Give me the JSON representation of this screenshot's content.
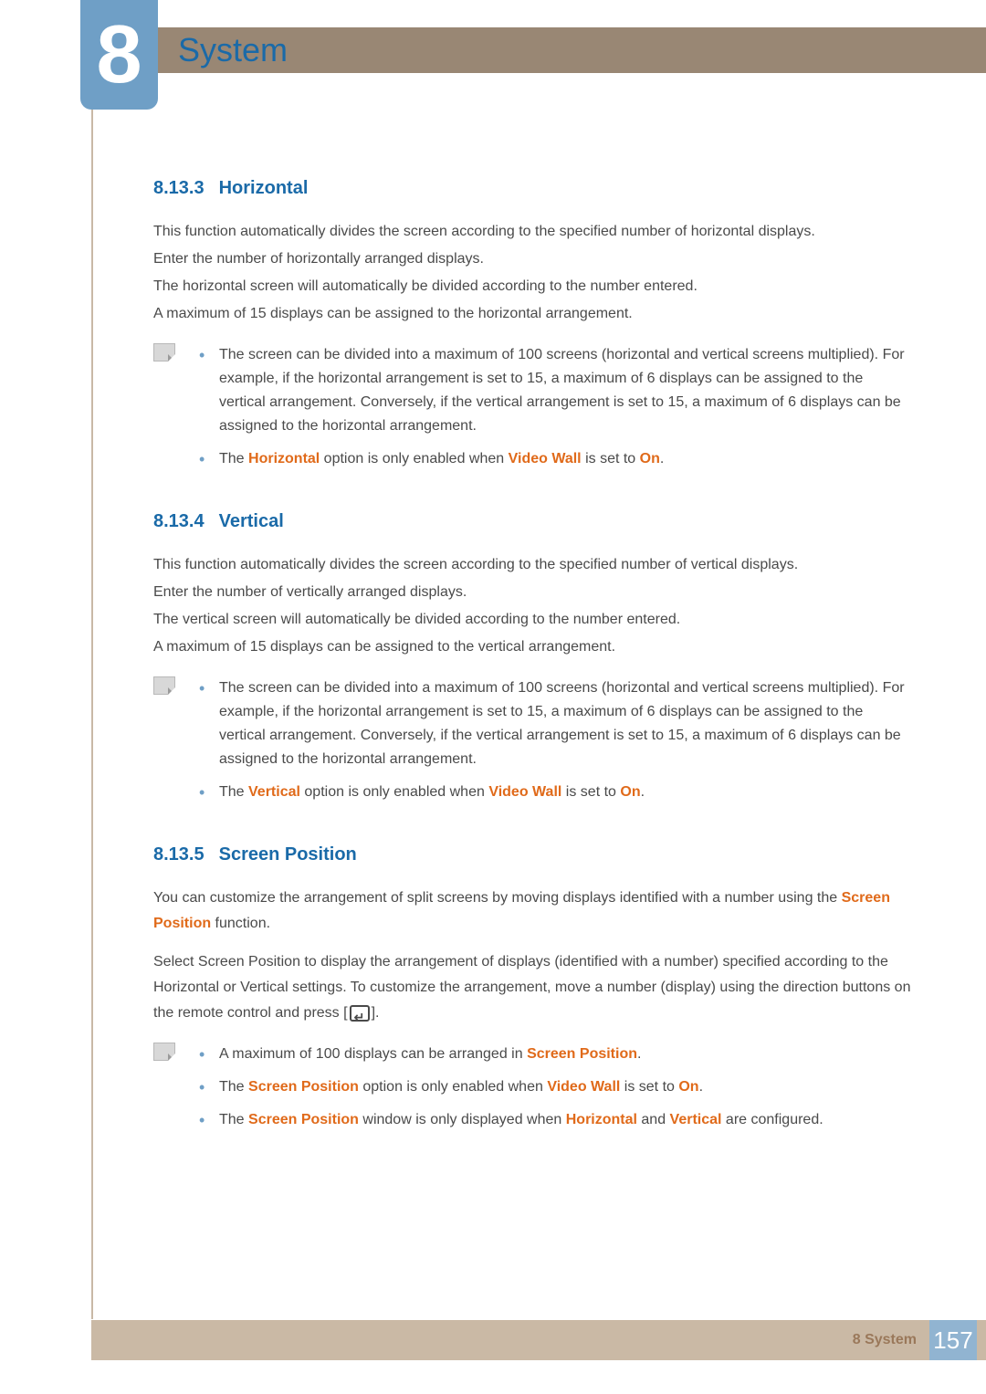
{
  "chapter": {
    "number": "8",
    "title": "System"
  },
  "sections": [
    {
      "num": "8.13.3",
      "title": "Horizontal",
      "paras": [
        "This function automatically divides the screen according to the specified number of horizontal displays.",
        "Enter the number of horizontally arranged displays.",
        "The horizontal screen will automatically be divided according to the number entered.",
        "A maximum of 15 displays can be assigned to the horizontal arrangement."
      ],
      "notes": [
        {
          "pre": "",
          "hl0": "",
          "mid": "The screen can be divided into a maximum of 100 screens (horizontal and vertical screens multiplied). For example, if the horizontal arrangement is set to 15, a maximum of 6 displays can be assigned to the vertical arrangement. Conversely, if the vertical arrangement is set to 15, a maximum of 6 displays can be assigned to the horizontal arrangement."
        },
        {
          "pre": "The ",
          "hl0": "Horizontal",
          "mid": " option is only enabled when ",
          "hl1": "Video Wall",
          "mid2": " is set to ",
          "hl2": "On",
          "post": "."
        }
      ]
    },
    {
      "num": "8.13.4",
      "title": "Vertical",
      "paras": [
        "This function automatically divides the screen according to the specified number of vertical displays.",
        "Enter the number of vertically arranged displays.",
        "The vertical screen will automatically be divided according to the number entered.",
        "A maximum of 15 displays can be assigned to the vertical arrangement."
      ],
      "notes": [
        {
          "pre": "",
          "hl0": "",
          "mid": "The screen can be divided into a maximum of 100 screens (horizontal and vertical screens multiplied). For example, if the horizontal arrangement is set to 15, a maximum of 6 displays can be assigned to the vertical arrangement. Conversely, if the vertical arrangement is set to 15, a maximum of 6 displays can be assigned to the horizontal arrangement."
        },
        {
          "pre": "The ",
          "hl0": "Vertical",
          "mid": " option is only enabled when ",
          "hl1": "Video Wall",
          "mid2": " is set to ",
          "hl2": "On",
          "post": "."
        }
      ]
    },
    {
      "num": "8.13.5",
      "title": "Screen Position",
      "paras_rich": [
        {
          "parts": [
            {
              "t": "You can customize the arrangement of split screens by moving displays identified with a number using the "
            },
            {
              "t": "Screen Position",
              "hl": true
            },
            {
              "t": " function."
            }
          ]
        },
        {
          "spacer": true,
          "parts": [
            {
              "t": "Select Screen Position to display the arrangement of displays (identified with a number) specified according to the Horizontal or Vertical settings. To customize the arrangement, move a number (display) using the direction buttons on the remote control and press ["
            },
            {
              "enter": true
            },
            {
              "t": "]."
            }
          ]
        }
      ],
      "notes": [
        {
          "pre": "A maximum of 100 displays can be arranged in ",
          "hl0": "Screen Position",
          "mid": ".",
          "post": ""
        },
        {
          "pre": "The ",
          "hl0": "Screen Position",
          "mid": " option is only enabled when ",
          "hl1": "Video Wall",
          "mid2": " is set to ",
          "hl2": "On",
          "post": "."
        },
        {
          "pre": "The ",
          "hl0": "Screen Position",
          "mid": " window is only displayed when ",
          "hl1": "Horizontal",
          "mid2": " and ",
          "hl2": "Vertical",
          "post": " are configured."
        }
      ]
    }
  ],
  "footer": {
    "label": "8 System",
    "page": "157"
  }
}
